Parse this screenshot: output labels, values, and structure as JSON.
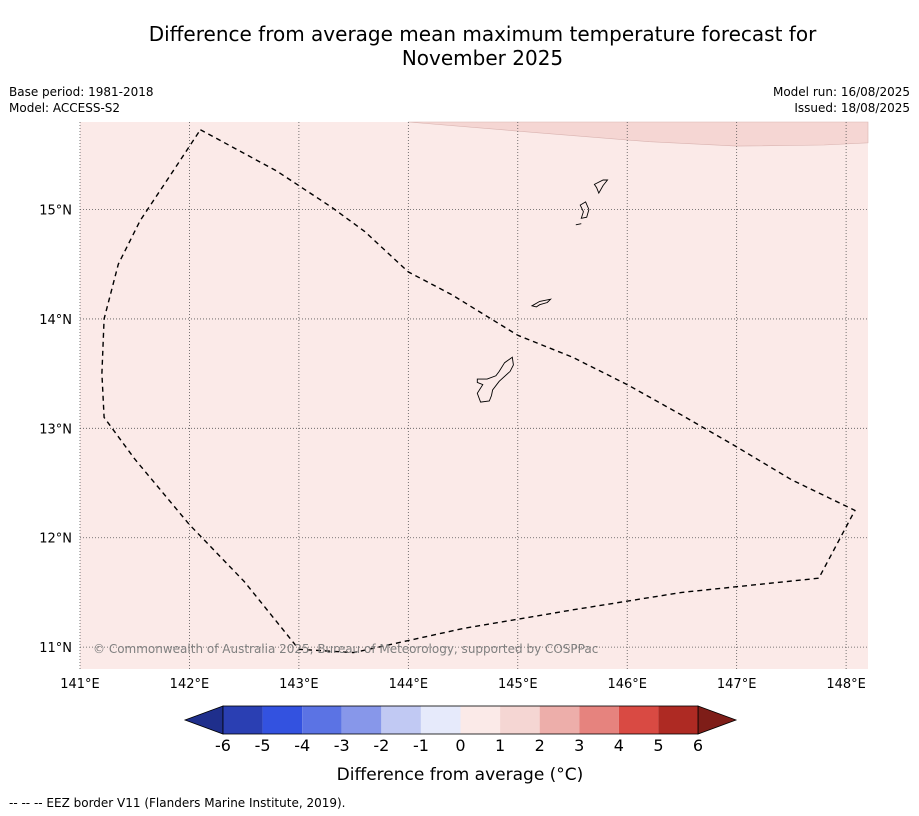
{
  "title_line1": "Difference from average mean maximum temperature forecast for",
  "title_line2": "November 2025",
  "meta_left": [
    "Base period: 1981-2018",
    "Model: ACCESS-S2"
  ],
  "meta_right": [
    "Model run: 16/08/2025",
    "Issued: 18/08/2025"
  ],
  "map": {
    "lon_range": [
      141.0,
      148.2
    ],
    "lat_range": [
      10.8,
      15.8
    ],
    "lon_ticks": [
      {
        "v": 141,
        "label": "141°E"
      },
      {
        "v": 142,
        "label": "142°E"
      },
      {
        "v": 143,
        "label": "143°E"
      },
      {
        "v": 144,
        "label": "144°E"
      },
      {
        "v": 145,
        "label": "145°E"
      },
      {
        "v": 146,
        "label": "146°E"
      },
      {
        "v": 147,
        "label": "147°E"
      },
      {
        "v": 148,
        "label": "148°E"
      }
    ],
    "lat_ticks": [
      {
        "v": 15,
        "label": "15°N"
      },
      {
        "v": 14,
        "label": "14°N"
      },
      {
        "v": 13,
        "label": "13°N"
      },
      {
        "v": 12,
        "label": "12°N"
      },
      {
        "v": 11,
        "label": "11°N"
      }
    ],
    "background_fill": "#fbeae8",
    "anomaly_fill": "#f5d6d3",
    "anomaly_region": [
      [
        144.0,
        15.8
      ],
      [
        145.2,
        15.7
      ],
      [
        146.2,
        15.62
      ],
      [
        147.0,
        15.58
      ],
      [
        147.8,
        15.59
      ],
      [
        148.2,
        15.61
      ],
      [
        148.2,
        15.8
      ]
    ],
    "eez_border": [
      [
        142.1,
        15.73
      ],
      [
        142.8,
        15.35
      ],
      [
        143.3,
        15.02
      ],
      [
        143.6,
        14.8
      ],
      [
        144.0,
        14.43
      ],
      [
        144.4,
        14.22
      ],
      [
        145.0,
        13.85
      ],
      [
        145.5,
        13.65
      ],
      [
        146.0,
        13.4
      ],
      [
        146.5,
        13.12
      ],
      [
        147.0,
        12.83
      ],
      [
        147.5,
        12.53
      ],
      [
        148.08,
        12.25
      ],
      [
        147.75,
        11.63
      ],
      [
        146.5,
        11.5
      ],
      [
        145.5,
        11.34
      ],
      [
        144.5,
        11.17
      ],
      [
        143.5,
        10.95
      ],
      [
        143.0,
        10.98
      ],
      [
        142.5,
        11.6
      ],
      [
        142.0,
        12.12
      ],
      [
        141.5,
        12.72
      ],
      [
        141.22,
        13.1
      ],
      [
        141.2,
        13.5
      ],
      [
        141.22,
        14.0
      ],
      [
        141.35,
        14.5
      ],
      [
        141.55,
        14.9
      ],
      [
        141.85,
        15.35
      ],
      [
        142.1,
        15.73
      ]
    ],
    "islands": [
      {
        "name": "Guam",
        "coords": [
          [
            144.95,
            13.65
          ],
          [
            144.88,
            13.6
          ],
          [
            144.83,
            13.52
          ],
          [
            144.8,
            13.48
          ],
          [
            144.72,
            13.45
          ],
          [
            144.63,
            13.45
          ],
          [
            144.63,
            13.42
          ],
          [
            144.68,
            13.4
          ],
          [
            144.63,
            13.32
          ],
          [
            144.66,
            13.24
          ],
          [
            144.74,
            13.25
          ],
          [
            144.76,
            13.3
          ],
          [
            144.77,
            13.35
          ],
          [
            144.83,
            13.43
          ],
          [
            144.93,
            13.52
          ],
          [
            144.96,
            13.58
          ],
          [
            144.95,
            13.65
          ]
        ]
      },
      {
        "name": "Rota",
        "coords": [
          [
            145.13,
            14.12
          ],
          [
            145.2,
            14.16
          ],
          [
            145.3,
            14.18
          ],
          [
            145.27,
            14.15
          ],
          [
            145.2,
            14.13
          ],
          [
            145.17,
            14.11
          ],
          [
            145.13,
            14.12
          ]
        ]
      },
      {
        "name": "Tinian",
        "coords": [
          [
            145.57,
            15.04
          ],
          [
            145.62,
            15.07
          ],
          [
            145.65,
            15.0
          ],
          [
            145.63,
            14.93
          ],
          [
            145.58,
            14.92
          ],
          [
            145.6,
            14.98
          ],
          [
            145.57,
            15.04
          ]
        ]
      },
      {
        "name": "Saipan",
        "coords": [
          [
            145.7,
            15.23
          ],
          [
            145.78,
            15.27
          ],
          [
            145.82,
            15.27
          ],
          [
            145.78,
            15.22
          ],
          [
            145.74,
            15.15
          ],
          [
            145.72,
            15.2
          ],
          [
            145.7,
            15.23
          ]
        ]
      },
      {
        "name": "Aguijan",
        "coords": [
          [
            145.53,
            14.86
          ],
          [
            145.58,
            14.87
          ]
        ]
      }
    ]
  },
  "copyright": "© Commonwealth of Australia 2025, Bureau of Meteorology, supported by COSPPac",
  "colorbar": {
    "title": "Difference from average (°C)",
    "labels": [
      "-6",
      "-5",
      "-4",
      "-3",
      "-2",
      "-1",
      "0",
      "1",
      "2",
      "3",
      "4",
      "5",
      "6"
    ],
    "colors": [
      "#2a3fb3",
      "#3352e0",
      "#5b73e4",
      "#8797ea",
      "#c1c9f3",
      "#e6eafb",
      "#fbeae8",
      "#f5d6d3",
      "#edaeaa",
      "#e6837e",
      "#d94a43",
      "#ae2a23"
    ],
    "under_color": "#1f2f8c",
    "over_color": "#7e1d18"
  },
  "footnote": "-- -- -- EEZ border V11 (Flanders Marine Institute, 2019)."
}
